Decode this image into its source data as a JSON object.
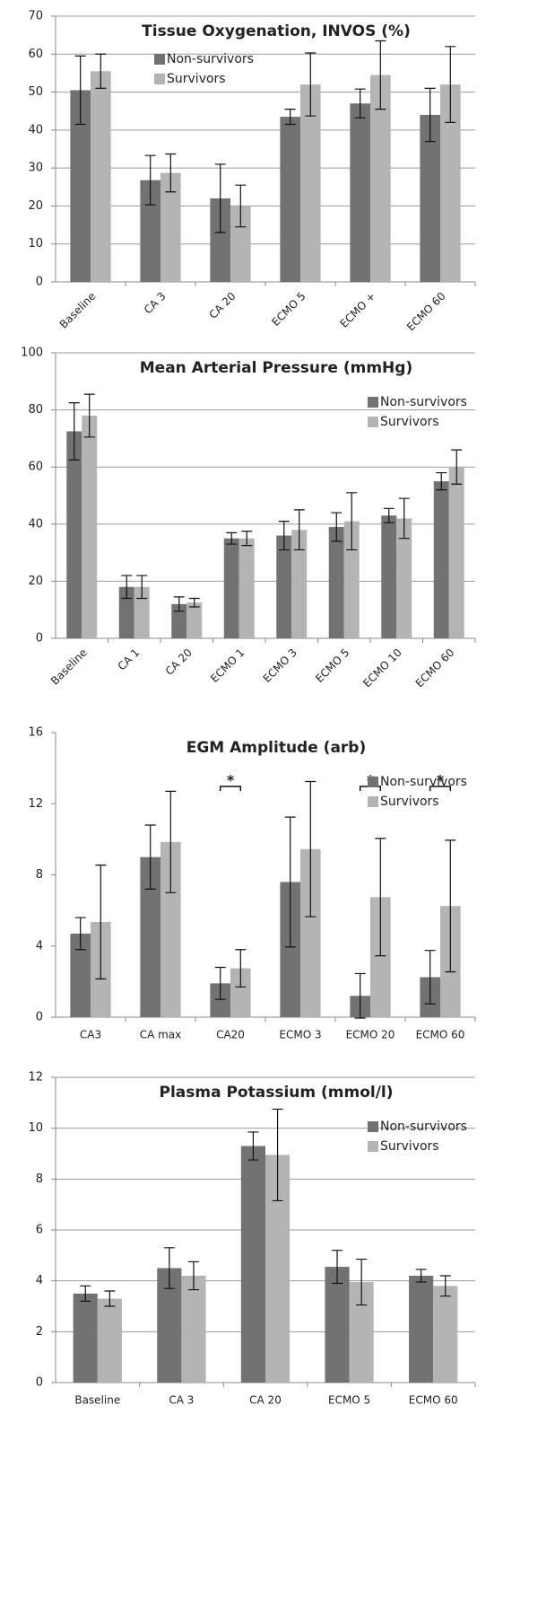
{
  "chart_data": [
    {
      "type": "bar",
      "title": "Tissue Oxygenation, INVOS (%)",
      "categories": [
        "Baseline",
        "CA 3",
        "CA 20",
        "ECMO 5",
        "ECMO +",
        "ECMO 60"
      ],
      "series": [
        {
          "name": "Non-survivors",
          "color": "#727272",
          "values": [
            50.5,
            26.8,
            22,
            43.5,
            47,
            44
          ],
          "errors": [
            9,
            6.5,
            9,
            2,
            3.8,
            7
          ]
        },
        {
          "name": "Survivors",
          "color": "#b4b4b4",
          "values": [
            55.5,
            28.7,
            20,
            52,
            54.5,
            52
          ],
          "errors": [
            4.5,
            5,
            5.5,
            8.3,
            9,
            10
          ]
        }
      ],
      "ylim": [
        0,
        70
      ],
      "yticks": [
        0,
        10,
        20,
        30,
        40,
        50,
        60,
        70
      ],
      "grid": true,
      "legend": "upper center"
    },
    {
      "type": "bar",
      "title": "Mean Arterial Pressure (mmHg)",
      "categories": [
        "Baseline",
        "CA 1",
        "CA 20",
        "ECMO 1",
        "ECMO 3",
        "ECMO 5",
        "ECMO 10",
        "ECMO 60"
      ],
      "series": [
        {
          "name": "Non-survivors",
          "color": "#727272",
          "values": [
            72.5,
            18,
            12,
            35,
            36,
            39,
            43,
            55
          ],
          "errors": [
            10,
            4,
            2.5,
            2,
            5,
            5,
            2.5,
            3
          ]
        },
        {
          "name": "Survivors",
          "color": "#b4b4b4",
          "values": [
            78,
            18,
            12.5,
            35,
            38,
            41,
            42,
            60
          ],
          "errors": [
            7.5,
            4,
            1.5,
            2.5,
            7,
            10,
            7,
            6
          ]
        }
      ],
      "ylim": [
        0,
        100
      ],
      "yticks": [
        0,
        20,
        40,
        60,
        80,
        100
      ],
      "grid": true,
      "legend": "upper right"
    },
    {
      "type": "bar",
      "title": "EGM Amplitude (arb)",
      "categories": [
        "CA3",
        "CA max",
        "CA20",
        "ECMO 3",
        "ECMO 20",
        "ECMO 60"
      ],
      "series": [
        {
          "name": "Non-survivors",
          "color": "#727272",
          "values": [
            4.7,
            9,
            1.9,
            7.6,
            1.2,
            2.25
          ],
          "errors": [
            0.9,
            1.8,
            0.9,
            3.65,
            1.25,
            1.5
          ]
        },
        {
          "name": "Survivors",
          "color": "#b4b4b4",
          "values": [
            5.35,
            9.85,
            2.75,
            9.45,
            6.75,
            6.25
          ],
          "errors": [
            3.2,
            2.85,
            1.05,
            3.8,
            3.3,
            3.7
          ]
        }
      ],
      "annotations": [
        {
          "text": "*",
          "category": "CA20"
        },
        {
          "text": "*",
          "category": "ECMO 20"
        },
        {
          "text": "*",
          "category": "ECMO 60"
        }
      ],
      "ylim": [
        0,
        16
      ],
      "yticks": [
        0,
        4,
        8,
        12,
        16
      ],
      "grid": false,
      "legend": "upper right"
    },
    {
      "type": "bar",
      "title": "Plasma Potassium (mmol/l)",
      "categories": [
        "Baseline",
        "CA 3",
        "CA 20",
        "ECMO 5",
        "ECMO 60"
      ],
      "series": [
        {
          "name": "Non-survivors",
          "color": "#727272",
          "values": [
            3.5,
            4.5,
            9.3,
            4.55,
            4.2
          ],
          "errors": [
            0.3,
            0.8,
            0.55,
            0.65,
            0.25
          ]
        },
        {
          "name": "Survivors",
          "color": "#b4b4b4",
          "values": [
            3.3,
            4.2,
            8.95,
            3.95,
            3.8
          ],
          "errors": [
            0.3,
            0.55,
            1.8,
            0.9,
            0.4
          ]
        }
      ],
      "ylim": [
        0,
        12
      ],
      "yticks": [
        0,
        2,
        4,
        6,
        8,
        10,
        12
      ],
      "grid": true,
      "legend": "upper right"
    }
  ]
}
